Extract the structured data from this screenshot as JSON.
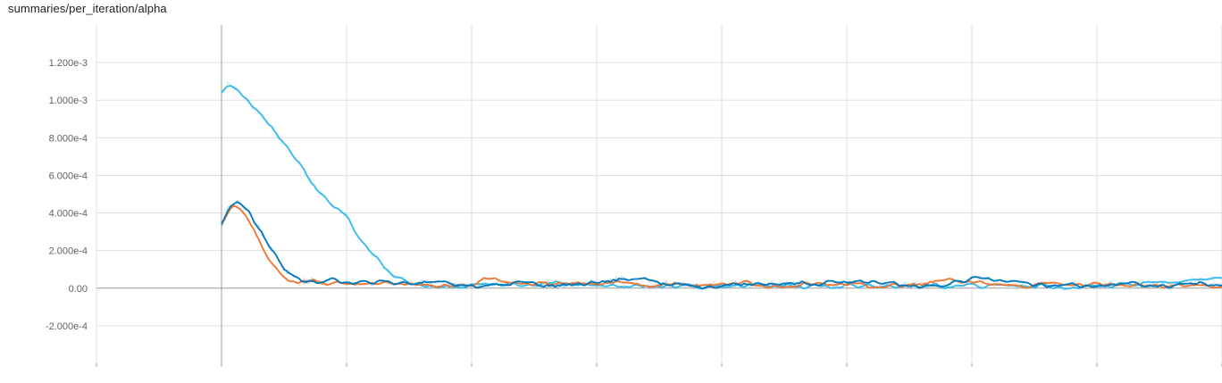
{
  "header": {
    "title": "summaries/per_iteration/alpha"
  },
  "colors": {
    "background": "#ffffff",
    "grid": "#e0e0e0",
    "axis": "#9e9e9e",
    "series_light_blue": "#33bbee",
    "series_orange": "#ee7733",
    "series_dark_blue": "#0077bb"
  },
  "chart_data": {
    "type": "line",
    "title": "summaries/per_iteration/alpha",
    "xlabel": "",
    "ylabel": "",
    "ylim": [
      -0.0004,
      0.0014
    ],
    "xlim": [
      -1,
      8
    ],
    "grid": true,
    "yticks": [
      {
        "value": 0.0012,
        "label": "1.200e-3"
      },
      {
        "value": 0.001,
        "label": "1.000e-3"
      },
      {
        "value": 0.0008,
        "label": "8.000e-4"
      },
      {
        "value": 0.0006,
        "label": "6.000e-4"
      },
      {
        "value": 0.0004,
        "label": "4.000e-4"
      },
      {
        "value": 0.0002,
        "label": "2.000e-4"
      },
      {
        "value": 0.0,
        "label": "0.00"
      },
      {
        "value": -0.0002,
        "label": "-2.000e-4"
      }
    ],
    "xticks": [
      -1,
      0,
      1,
      2,
      3,
      4,
      5,
      6,
      7,
      8
    ],
    "series": [
      {
        "color": "#33bbee",
        "x": [
          0,
          0.05,
          0.1,
          0.2,
          0.3,
          0.4,
          0.5,
          0.6,
          0.7,
          0.8,
          0.9,
          1.0,
          1.1,
          1.2,
          1.3,
          1.4,
          1.5,
          1.6,
          1.7,
          1.8,
          2.0,
          2.5,
          3.0,
          3.5,
          4.0,
          4.5,
          5.0,
          5.5,
          6.0,
          6.5,
          7.0,
          7.5,
          7.7,
          8.0
        ],
        "y": [
          0.00105,
          0.00108,
          0.00107,
          0.001,
          0.00093,
          0.00085,
          0.00077,
          0.00068,
          0.00058,
          0.0005,
          0.00043,
          0.00038,
          0.00028,
          0.00019,
          0.00011,
          6e-05,
          3e-05,
          1.5e-05,
          1e-05,
          1e-05,
          1e-05,
          2e-05,
          2e-05,
          1e-05,
          1e-05,
          1e-05,
          1e-05,
          1e-05,
          1e-05,
          1e-05,
          1e-05,
          2e-05,
          4e-05,
          5e-05
        ]
      },
      {
        "color": "#ee7733",
        "x": [
          0,
          0.05,
          0.1,
          0.15,
          0.2,
          0.3,
          0.4,
          0.5,
          0.6,
          0.7,
          0.8,
          1.0,
          1.2,
          1.4,
          1.6,
          1.8,
          2.0,
          2.1,
          2.3,
          2.5,
          2.7,
          3.0,
          3.2,
          3.4,
          3.6,
          3.8,
          4.0,
          4.2,
          4.4,
          4.6,
          4.8,
          5.0,
          5.2,
          5.4,
          5.6,
          5.8,
          6.0,
          6.2,
          6.4,
          6.6,
          6.8,
          7.0,
          7.2,
          7.4,
          7.6,
          7.8,
          8.0
        ],
        "y": [
          0.00033,
          0.00041,
          0.00043,
          0.00042,
          0.00038,
          0.00025,
          0.00013,
          5e-05,
          3e-05,
          4e-05,
          3e-05,
          2e-05,
          2e-05,
          3e-05,
          2e-05,
          1e-05,
          1e-05,
          6e-05,
          3e-05,
          2e-05,
          2e-05,
          3e-05,
          3e-05,
          1e-05,
          2e-05,
          2e-05,
          2e-05,
          3e-05,
          1e-05,
          2e-05,
          2e-05,
          2e-05,
          1e-05,
          1e-05,
          2e-05,
          4e-05,
          3e-05,
          2e-05,
          1e-05,
          2e-05,
          2e-05,
          2e-05,
          2e-05,
          2e-05,
          1e-05,
          2e-05,
          1e-05
        ]
      },
      {
        "color": "#0077bb",
        "x": [
          0,
          0.05,
          0.1,
          0.15,
          0.2,
          0.3,
          0.4,
          0.5,
          0.6,
          0.7,
          0.8,
          0.9,
          1.0,
          1.2,
          1.4,
          1.6,
          1.8,
          2.0,
          2.2,
          2.4,
          2.6,
          2.8,
          3.0,
          3.2,
          3.4,
          3.6,
          3.8,
          4.0,
          4.2,
          4.4,
          4.6,
          4.8,
          5.0,
          5.2,
          5.4,
          5.6,
          5.8,
          6.0,
          6.2,
          6.4,
          6.6,
          6.8,
          7.0,
          7.2,
          7.4,
          7.6,
          7.8,
          8.0
        ],
        "y": [
          0.00032,
          0.00043,
          0.00045,
          0.00045,
          0.00042,
          0.00032,
          0.0002,
          0.0001,
          5e-05,
          3e-05,
          4e-05,
          5e-05,
          3e-05,
          3e-05,
          3e-05,
          3e-05,
          2e-05,
          1e-05,
          2e-05,
          3e-05,
          1e-05,
          2e-05,
          3e-05,
          5e-05,
          4e-05,
          2e-05,
          1e-05,
          2e-05,
          2e-05,
          3e-05,
          2e-05,
          2e-05,
          4e-05,
          3e-05,
          2e-05,
          1e-05,
          2e-05,
          5e-05,
          4e-05,
          2e-05,
          2e-05,
          2e-05,
          1e-05,
          3e-05,
          2e-05,
          1e-05,
          3e-05,
          1e-05
        ]
      }
    ]
  }
}
